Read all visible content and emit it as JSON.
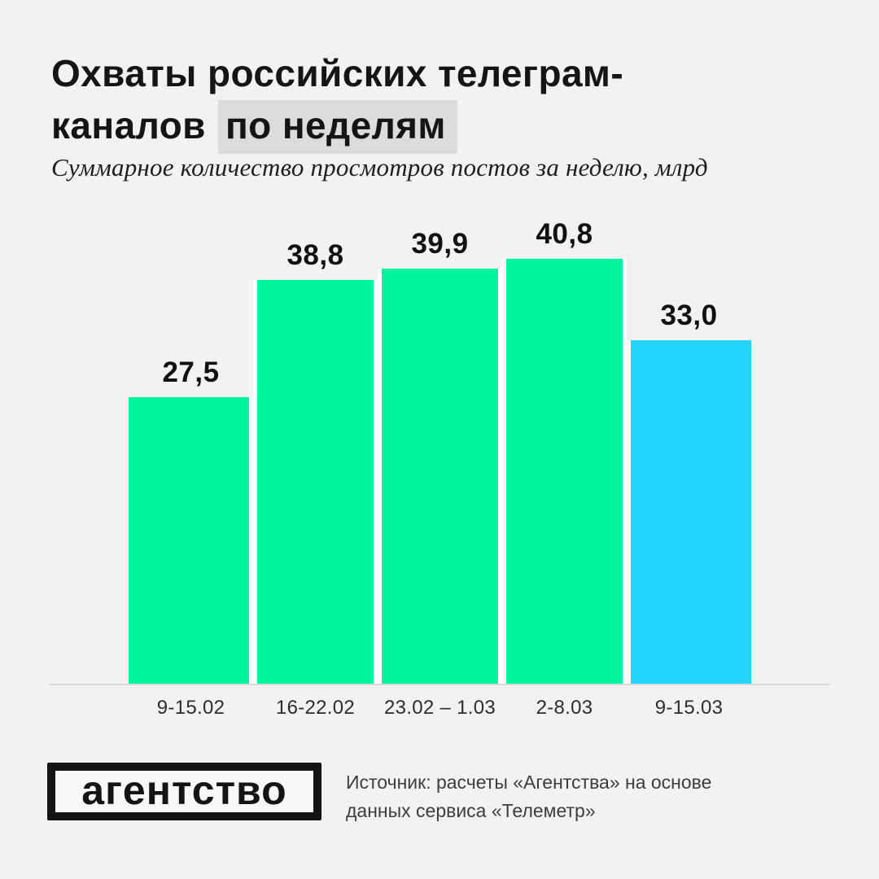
{
  "header": {
    "title_line1": "Охваты российских телеграм-",
    "title_line2_prefix": "каналов",
    "title_line2_highlight": "по неделям",
    "subtitle": "Суммарное количество просмотров постов за неделю, млрд"
  },
  "chart_data": {
    "type": "bar",
    "title": "Охваты российских телеграм-каналов по неделям",
    "subtitle_units": "Суммарное количество просмотров постов за неделю, млрд",
    "categories": [
      "9-15.02",
      "16-22.02",
      "23.02 – 1.03",
      "2-8.03",
      "9-15.03"
    ],
    "values": [
      27.5,
      38.8,
      39.9,
      40.8,
      33.0
    ],
    "value_labels": [
      "27,5",
      "38,8",
      "39,9",
      "40,8",
      "33,0"
    ],
    "bar_colors": [
      "#00F59E",
      "#00F59E",
      "#00F59E",
      "#00F59E",
      "#22D3FC"
    ],
    "ylim": [
      0,
      44
    ],
    "grid": false,
    "legend": false,
    "value_labels_position": "above-bars",
    "baseline_axis_color": "#D8D8D5"
  },
  "footer": {
    "logo_text": "агентство",
    "source_line1": "Источник: расчеты «Агентства» на основе",
    "source_line2": "данных сервиса «Телеметр»"
  },
  "colors": {
    "background": "#F2F2F0",
    "green": "#00F59E",
    "blue": "#22D3FC",
    "title_highlight": "#DCDCDC",
    "text": "#151515"
  }
}
